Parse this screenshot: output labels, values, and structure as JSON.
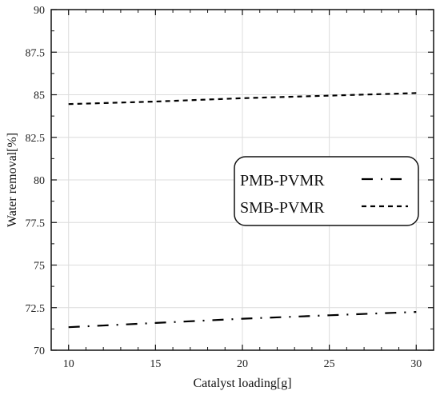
{
  "chart_data": {
    "type": "line",
    "title": "",
    "xlabel": "Catalyst loading[g]",
    "ylabel": "Water removal[%]",
    "xlim": [
      9,
      31
    ],
    "ylim": [
      70,
      90
    ],
    "xticks": [
      10,
      15,
      20,
      25,
      30
    ],
    "yticks": [
      70,
      72.5,
      75,
      77.5,
      80,
      82.5,
      85,
      87.5,
      90
    ],
    "xtick_labels": [
      "10",
      "15",
      "20",
      "25",
      "30"
    ],
    "ytick_labels": [
      "70",
      "72.5",
      "75",
      "77.5",
      "80",
      "82.5",
      "85",
      "87.5",
      "90"
    ],
    "grid": true,
    "legend_position": "right",
    "series": [
      {
        "name": "PMB-PVMR",
        "style": "dash-dot",
        "color": "#000000",
        "x": [
          10,
          15,
          20,
          25,
          30
        ],
        "y": [
          71.35,
          71.6,
          71.85,
          72.05,
          72.25
        ]
      },
      {
        "name": "SMB-PVMR",
        "style": "dashed",
        "color": "#000000",
        "x": [
          10,
          15,
          20,
          25,
          30
        ],
        "y": [
          84.45,
          84.6,
          84.8,
          84.95,
          85.1
        ]
      }
    ]
  }
}
